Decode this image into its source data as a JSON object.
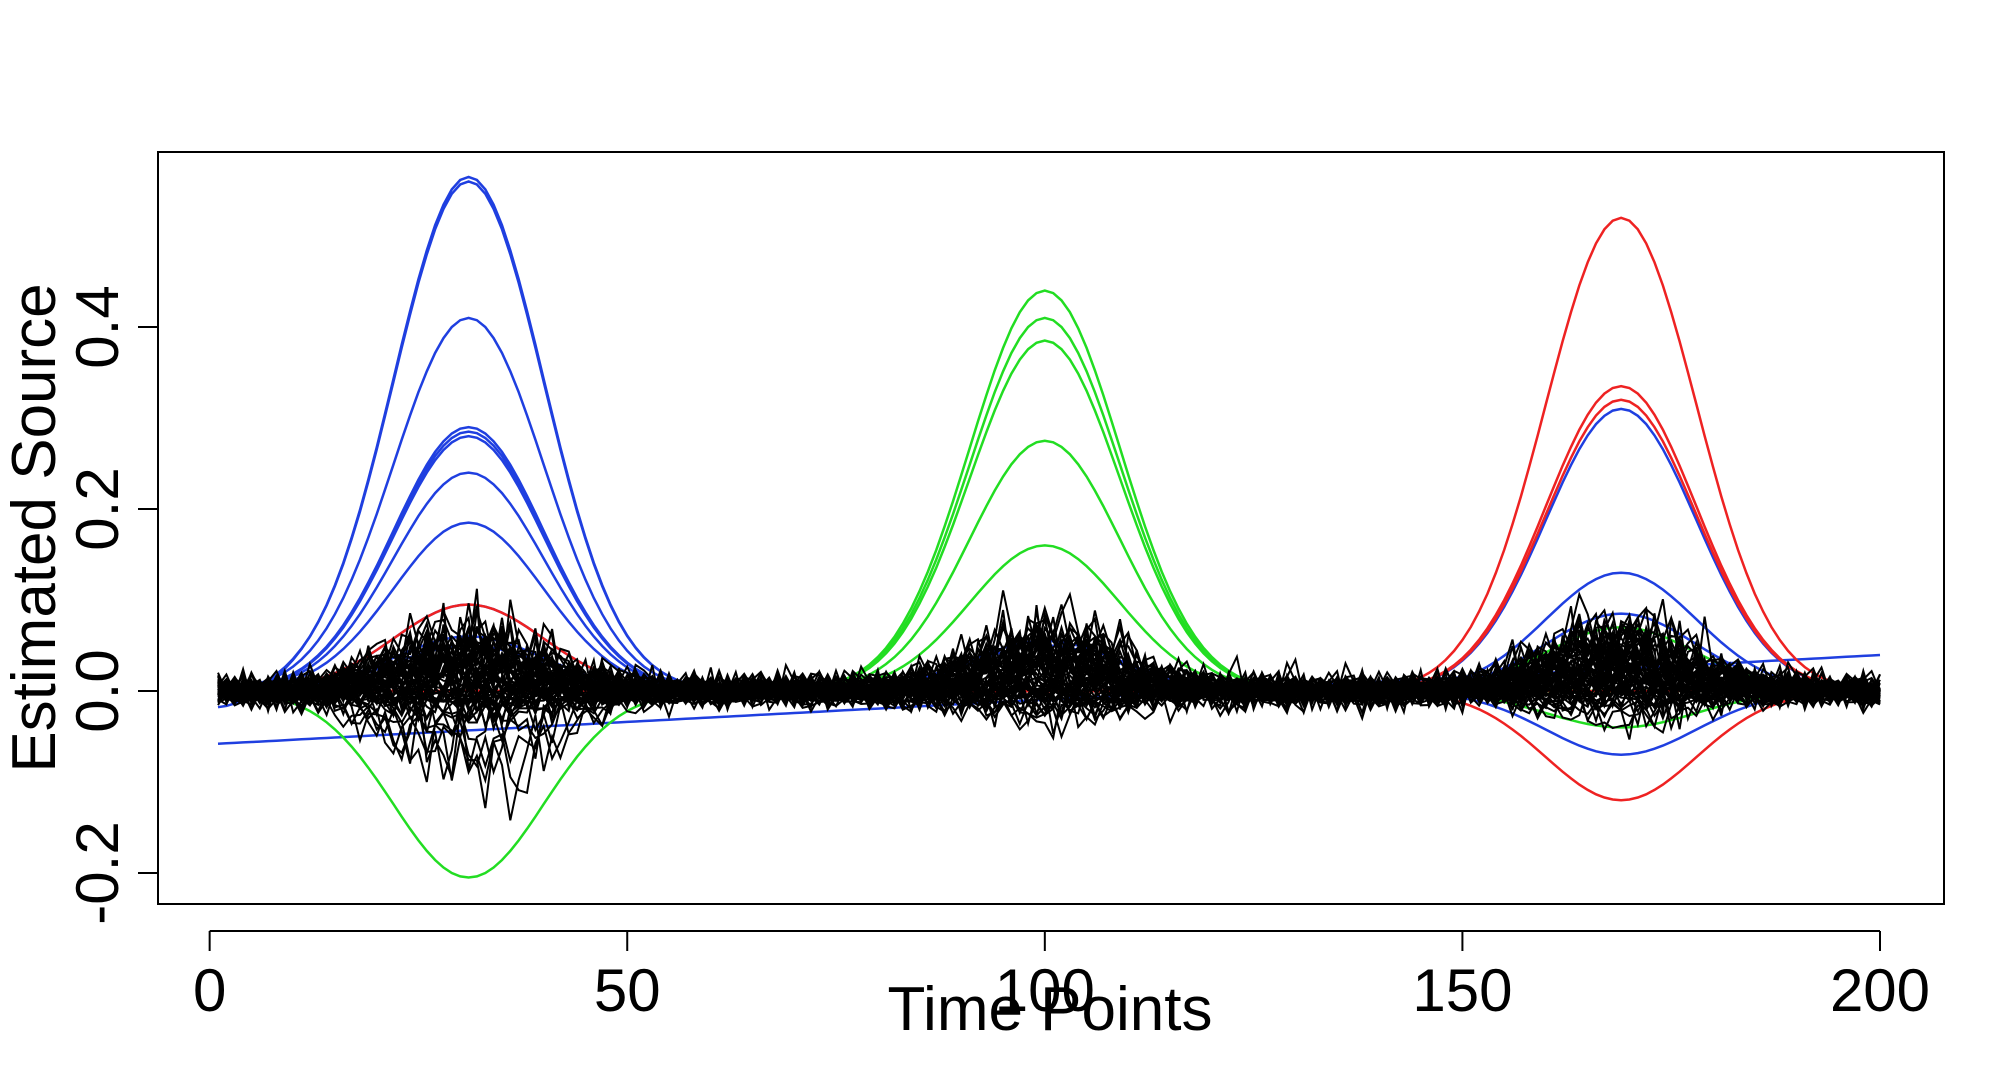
{
  "chart_data": {
    "type": "line",
    "title": "",
    "xlabel": "Time Points",
    "ylabel": "Estimated Source",
    "xlim": [
      1,
      200
    ],
    "ylim": [
      -0.22,
      0.59
    ],
    "xticks": [
      0,
      50,
      100,
      150,
      200
    ],
    "xtick_labels": [
      "0",
      "50",
      "100",
      "150",
      "200"
    ],
    "yticks": [
      -0.2,
      0.0,
      0.2,
      0.4
    ],
    "ytick_labels": [
      "-0.2",
      "0.0",
      "0.2",
      "0.4"
    ],
    "grid": false,
    "legend": "none",
    "colors": {
      "blue": "#1f3fe0",
      "green": "#22dd22",
      "red": "#ee2222",
      "black": "#000000"
    },
    "peak_centers": [
      31,
      100,
      169
    ],
    "peak_sigma": 9,
    "smooth_series": [
      {
        "color": "blue",
        "amplitudes": [
          0.565,
          0.0,
          0.0
        ],
        "offset": -0.02
      },
      {
        "color": "blue",
        "amplitudes": [
          0.56,
          0.0,
          0.0
        ],
        "offset": -0.01
      },
      {
        "color": "blue",
        "amplitudes": [
          0.41,
          0.0,
          0.0
        ],
        "offset": 0.0
      },
      {
        "color": "blue",
        "amplitudes": [
          0.29,
          0.0,
          0.0
        ],
        "offset": 0.0
      },
      {
        "color": "blue",
        "amplitudes": [
          0.285,
          0.0,
          0.0
        ],
        "offset": 0.0
      },
      {
        "color": "blue",
        "amplitudes": [
          0.28,
          0.0,
          0.0
        ],
        "offset": 0.0
      },
      {
        "color": "blue",
        "amplitudes": [
          0.24,
          0.0,
          0.0
        ],
        "offset": 0.0
      },
      {
        "color": "blue",
        "amplitudes": [
          0.185,
          0.0,
          0.0
        ],
        "offset": 0.0
      },
      {
        "color": "blue",
        "amplitudes": [
          0.095,
          0.0,
          0.0
        ],
        "offset": 0.0
      },
      {
        "color": "blue",
        "amplitudes": [
          0.05,
          0.055,
          0.13
        ],
        "offset": 0.0
      },
      {
        "color": "blue",
        "amplitudes": [
          0.06,
          0.05,
          0.085
        ],
        "offset": 0.0
      },
      {
        "color": "blue",
        "amplitudes": [
          0.0,
          0.0,
          0.31
        ],
        "offset": 0.0
      },
      {
        "color": "blue",
        "amplitudes": [
          0.0,
          0.0,
          -0.07
        ],
        "offset": 0.0
      },
      {
        "color": "blue",
        "amplitudes": [
          0.0,
          0.0,
          0.0
        ],
        "offset": -0.058,
        "slope": 0.00049
      },
      {
        "color": "green",
        "amplitudes": [
          0.0,
          0.44,
          0.0
        ],
        "offset": 0.0
      },
      {
        "color": "green",
        "amplitudes": [
          0.0,
          0.41,
          0.0
        ],
        "offset": 0.0
      },
      {
        "color": "green",
        "amplitudes": [
          0.0,
          0.385,
          0.0
        ],
        "offset": 0.0
      },
      {
        "color": "green",
        "amplitudes": [
          0.0,
          0.275,
          0.0
        ],
        "offset": 0.0
      },
      {
        "color": "green",
        "amplitudes": [
          0.0,
          0.16,
          0.0
        ],
        "offset": 0.0
      },
      {
        "color": "green",
        "amplitudes": [
          -0.205,
          0.0,
          0.0
        ],
        "offset": 0.0
      },
      {
        "color": "green",
        "amplitudes": [
          0.0,
          0.0,
          0.07
        ],
        "offset": 0.0
      },
      {
        "color": "green",
        "amplitudes": [
          0.0,
          0.0,
          -0.04
        ],
        "offset": 0.0
      },
      {
        "color": "red",
        "amplitudes": [
          0.0,
          0.0,
          0.52
        ],
        "offset": 0.0
      },
      {
        "color": "red",
        "amplitudes": [
          0.0,
          0.0,
          0.335
        ],
        "offset": 0.0
      },
      {
        "color": "red",
        "amplitudes": [
          0.0,
          0.0,
          0.32
        ],
        "offset": 0.0
      },
      {
        "color": "red",
        "amplitudes": [
          0.0,
          0.0,
          -0.12
        ],
        "offset": 0.0
      },
      {
        "color": "red",
        "amplitudes": [
          0.095,
          0.0,
          0.0
        ],
        "offset": 0.0
      }
    ],
    "noise_series": {
      "color": "black",
      "count": 60,
      "noise_sd": 0.008,
      "bump_amplitude_range": [
        -0.08,
        0.06
      ],
      "rng_seed": 12345
    }
  }
}
